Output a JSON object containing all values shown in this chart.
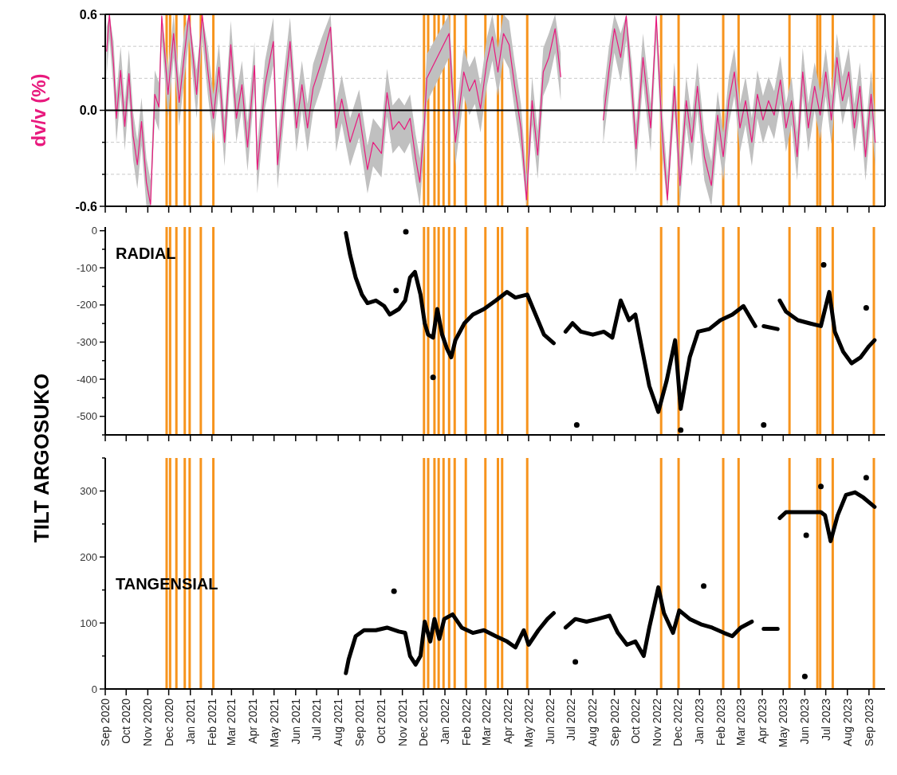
{
  "chart_data": [
    {
      "type": "line",
      "ylabel": "dv/v (%)",
      "xlim": [
        "2020-09-01",
        "2023-09-24"
      ],
      "ylim": [
        -0.6,
        0.6
      ],
      "tick_labels": "y",
      "grid": "y",
      "yticks": [
        {
          "value": -0.6,
          "label": "-0.6"
        },
        {
          "value": -0.4,
          "label": null
        },
        {
          "value": -0.2,
          "label": null
        },
        {
          "value": 0,
          "label": "0.0"
        },
        {
          "value": 0.2,
          "label": null
        },
        {
          "value": 0.4,
          "label": null
        },
        {
          "value": 0.6,
          "label": "0.6"
        }
      ],
      "xticks": [
        {
          "value": "2020-09",
          "label": null
        },
        {
          "value": "2020-10",
          "label": null
        },
        {
          "value": "2020-11",
          "label": null
        },
        {
          "value": "2020-12",
          "label": null
        },
        {
          "value": "2021-01",
          "label": null
        },
        {
          "value": "2021-02",
          "label": null
        },
        {
          "value": "2021-03",
          "label": null
        },
        {
          "value": "2021-04",
          "label": null
        },
        {
          "value": "2021-05",
          "label": null
        },
        {
          "value": "2021-06",
          "label": null
        },
        {
          "value": "2021-07",
          "label": null
        },
        {
          "value": "2021-08",
          "label": null
        },
        {
          "value": "2021-09",
          "label": null
        },
        {
          "value": "2021-10",
          "label": null
        },
        {
          "value": "2021-11",
          "label": null
        },
        {
          "value": "2021-12",
          "label": null
        },
        {
          "value": "2022-01",
          "label": null
        },
        {
          "value": "2022-02",
          "label": null
        },
        {
          "value": "2022-03",
          "label": null
        },
        {
          "value": "2022-04",
          "label": null
        },
        {
          "value": "2022-05",
          "label": null
        },
        {
          "value": "2022-06",
          "label": null
        },
        {
          "value": "2022-07",
          "label": null
        },
        {
          "value": "2022-08",
          "label": null
        },
        {
          "value": "2022-09",
          "label": null
        },
        {
          "value": "2022-10",
          "label": null
        },
        {
          "value": "2022-11",
          "label": null
        },
        {
          "value": "2022-12",
          "label": null
        },
        {
          "value": "2023-01",
          "label": null
        },
        {
          "value": "2023-02",
          "label": null
        },
        {
          "value": "2023-03",
          "label": null
        },
        {
          "value": "2023-04",
          "label": null
        },
        {
          "value": "2023-05",
          "label": null
        },
        {
          "value": "2023-06",
          "label": null
        },
        {
          "value": "2023-07",
          "label": null
        },
        {
          "value": "2023-08",
          "label": null
        },
        {
          "value": "2023-09",
          "label": null
        }
      ],
      "ref_lines": [
        {
          "axis": "y",
          "value": 0,
          "color": "#000000"
        },
        {
          "axis": "x",
          "value": "2020-11-28",
          "color": "#f7941d"
        },
        {
          "axis": "x",
          "value": "2020-12-03",
          "color": "#f7941d"
        },
        {
          "axis": "x",
          "value": "2020-12-12",
          "color": "#f7941d"
        },
        {
          "axis": "x",
          "value": "2020-12-24",
          "color": "#f7941d"
        },
        {
          "axis": "x",
          "value": "2020-12-31",
          "color": "#f7941d"
        },
        {
          "axis": "x",
          "value": "2021-01-16",
          "color": "#f7941d"
        },
        {
          "axis": "x",
          "value": "2021-02-03",
          "color": "#f7941d"
        },
        {
          "axis": "x",
          "value": "2021-12-02",
          "color": "#f7941d"
        },
        {
          "axis": "x",
          "value": "2021-12-08",
          "color": "#f7941d"
        },
        {
          "axis": "x",
          "value": "2021-12-17",
          "color": "#f7941d"
        },
        {
          "axis": "x",
          "value": "2021-12-23",
          "color": "#f7941d"
        },
        {
          "axis": "x",
          "value": "2021-12-30",
          "color": "#f7941d"
        },
        {
          "axis": "x",
          "value": "2022-01-07",
          "color": "#f7941d"
        },
        {
          "axis": "x",
          "value": "2022-01-15",
          "color": "#f7941d"
        },
        {
          "axis": "x",
          "value": "2022-01-31",
          "color": "#f7941d"
        },
        {
          "axis": "x",
          "value": "2022-02-28",
          "color": "#f7941d"
        },
        {
          "axis": "x",
          "value": "2022-03-18",
          "color": "#f7941d"
        },
        {
          "axis": "x",
          "value": "2022-03-24",
          "color": "#f7941d"
        },
        {
          "axis": "x",
          "value": "2022-04-29",
          "color": "#f7941d"
        },
        {
          "axis": "x",
          "value": "2022-11-07",
          "color": "#f7941d"
        },
        {
          "axis": "x",
          "value": "2022-12-02",
          "color": "#f7941d"
        },
        {
          "axis": "x",
          "value": "2023-02-04",
          "color": "#f7941d"
        },
        {
          "axis": "x",
          "value": "2023-02-26",
          "color": "#f7941d"
        },
        {
          "axis": "x",
          "value": "2023-05-10",
          "color": "#f7941d"
        },
        {
          "axis": "x",
          "value": "2023-06-19",
          "color": "#f7941d"
        },
        {
          "axis": "x",
          "value": "2023-06-23",
          "color": "#f7941d"
        },
        {
          "axis": "x",
          "value": "2023-07-11",
          "color": "#f7941d"
        },
        {
          "axis": "x",
          "value": "2023-09-08",
          "color": "#f7941d"
        }
      ],
      "series": [
        {
          "color": "#e8197d",
          "x": [
            "2020-09-03",
            "2020-09-07",
            "2020-09-13",
            "2020-09-17",
            "2020-09-23",
            "2020-09-29",
            "2020-10-05",
            "2020-10-11",
            "2020-10-17",
            "2020-10-23",
            "2020-10-30",
            "2020-11-05",
            "2020-11-11",
            "2020-11-17",
            "2020-11-21",
            "2020-11-30",
            "2020-12-08",
            "2020-12-16",
            "2020-12-24",
            "2020-12-30",
            "2021-01-10",
            "2021-01-18",
            "2021-01-26",
            "2021-02-03",
            "2021-02-11",
            "2021-02-19",
            "2021-02-28",
            "2021-03-08",
            "2021-03-16",
            "2021-03-24",
            "2021-04-03",
            "2021-04-07",
            "2021-04-18",
            "2021-04-30",
            "2021-05-06",
            "2021-05-16",
            "2021-05-24",
            "2021-06-02",
            "2021-06-10",
            "2021-06-18",
            "2021-06-26",
            "2021-07-08",
            "2021-07-21",
            "2021-07-29",
            "2021-08-06",
            "2021-08-18",
            "2021-08-31",
            "2021-09-12",
            "2021-09-20",
            "2021-10-02",
            "2021-10-10",
            "2021-10-18",
            "2021-10-27",
            "2021-11-04",
            "2021-11-12",
            "2021-11-20",
            "2021-11-26",
            "2021-12-03",
            "2021-12-06",
            "2022-01-07",
            "2022-01-16",
            "2022-01-28",
            "2022-02-05",
            "2022-02-13",
            "2022-02-21",
            "2022-03-02",
            "2022-03-10",
            "2022-03-18",
            "2022-03-26",
            "2022-04-03",
            "2022-04-11",
            "2022-04-20",
            "2022-04-28",
            "2022-05-06",
            "2022-05-14",
            "2022-05-22",
            "2022-05-30",
            "2022-06-08",
            "2022-06-16",
            "2022-07-15",
            "2022-08-16",
            "2022-08-24",
            "2022-09-01",
            "2022-09-10",
            "2022-09-18",
            "2022-09-26",
            "2022-10-02",
            "2022-10-12",
            "2022-10-23",
            "2022-10-31",
            "2022-11-08",
            "2022-11-16",
            "2022-11-26",
            "2022-12-04",
            "2022-12-13",
            "2022-12-21",
            "2022-12-29",
            "2023-01-08",
            "2023-01-18",
            "2023-01-27",
            "2023-02-04",
            "2023-02-12",
            "2023-02-20",
            "2023-02-28",
            "2023-03-08",
            "2023-03-17",
            "2023-03-25",
            "2023-04-02",
            "2023-04-10",
            "2023-04-18",
            "2023-04-27",
            "2023-05-05",
            "2023-05-13",
            "2023-05-21",
            "2023-05-29",
            "2023-06-06",
            "2023-06-15",
            "2023-06-23",
            "2023-07-01",
            "2023-07-09",
            "2023-07-17",
            "2023-07-25",
            "2023-08-03",
            "2023-08-11",
            "2023-08-19",
            "2023-08-27",
            "2023-09-04",
            "2023-09-10"
          ],
          "values": [
            0.37,
            0.6,
            0.28,
            -0.05,
            0.25,
            -0.1,
            0.23,
            -0.16,
            -0.34,
            -0.07,
            -0.45,
            -0.59,
            0.1,
            0.02,
            0.59,
            0.1,
            0.48,
            0.05,
            0.37,
            0.6,
            0.1,
            0.6,
            0.25,
            -0.05,
            0.27,
            -0.2,
            0.41,
            -0.05,
            0.16,
            -0.23,
            0.28,
            -0.37,
            0.16,
            0.43,
            -0.34,
            0.12,
            0.43,
            -0.11,
            0.16,
            -0.11,
            0.14,
            0.3,
            0.52,
            -0.11,
            0.07,
            -0.2,
            -0.02,
            -0.37,
            -0.2,
            -0.27,
            0.11,
            -0.12,
            -0.07,
            -0.12,
            -0.05,
            -0.3,
            -0.45,
            -0.05,
            0.2,
            0.48,
            -0.2,
            0.24,
            0.12,
            0.19,
            0.01,
            0.3,
            0.46,
            0.24,
            0.48,
            0.41,
            0.15,
            -0.11,
            -0.56,
            0.06,
            -0.28,
            0.24,
            0.33,
            0.51,
            0.21,
            null,
            -0.06,
            0.24,
            0.51,
            0.33,
            0.59,
            0.15,
            -0.24,
            0.33,
            -0.11,
            0.59,
            -0.11,
            -0.56,
            0.15,
            -0.47,
            0.06,
            -0.2,
            0.15,
            -0.29,
            -0.47,
            -0.03,
            -0.29,
            0.06,
            0.24,
            -0.11,
            0.06,
            -0.2,
            0.1,
            -0.06,
            0.06,
            -0.03,
            0.19,
            -0.11,
            0.06,
            -0.29,
            0.24,
            -0.11,
            0.15,
            -0.03,
            0.24,
            -0.06,
            0.33,
            0.06,
            0.24,
            -0.11,
            0.15,
            -0.29,
            0.1,
            -0.2
          ],
          "lower": [
            0.22,
            0.45,
            0.13,
            -0.2,
            0.1,
            -0.25,
            0.08,
            -0.31,
            -0.49,
            -0.22,
            -0.6,
            -0.6,
            -0.05,
            -0.13,
            0.44,
            -0.05,
            0.33,
            -0.1,
            0.22,
            0.45,
            -0.05,
            0.45,
            0.1,
            -0.2,
            0.12,
            -0.35,
            0.26,
            -0.2,
            0.01,
            -0.38,
            0.13,
            -0.52,
            0.01,
            0.28,
            -0.49,
            -0.03,
            0.28,
            -0.26,
            0.01,
            -0.26,
            -0.01,
            0.15,
            0.37,
            -0.26,
            -0.08,
            -0.35,
            -0.17,
            -0.52,
            -0.35,
            -0.42,
            -0.04,
            -0.27,
            -0.22,
            -0.27,
            -0.2,
            -0.45,
            -0.6,
            -0.2,
            0.05,
            0.33,
            -0.35,
            0.09,
            -0.03,
            0.04,
            -0.14,
            0.15,
            0.31,
            0.09,
            0.33,
            0.26,
            0,
            -0.26,
            -0.6,
            -0.09,
            -0.43,
            0.09,
            0.18,
            0.36,
            0.06,
            null,
            -0.21,
            0.09,
            0.36,
            0.18,
            0.44,
            0,
            -0.39,
            0.18,
            -0.26,
            0.44,
            -0.26,
            -0.6,
            0,
            -0.6,
            -0.09,
            -0.35,
            0,
            -0.44,
            -0.6,
            -0.18,
            -0.44,
            -0.09,
            0.09,
            -0.26,
            -0.09,
            -0.35,
            -0.05,
            -0.21,
            -0.09,
            -0.18,
            0.04,
            -0.26,
            -0.09,
            -0.44,
            0.09,
            -0.26,
            0,
            -0.18,
            0.09,
            -0.21,
            0.18,
            -0.09,
            0.09,
            -0.26,
            0,
            -0.44,
            -0.05,
            -0.35
          ],
          "upper": [
            0.52,
            0.6,
            0.43,
            0.1,
            0.4,
            0.05,
            0.38,
            -0.01,
            -0.19,
            0.08,
            -0.3,
            -0.44,
            0.25,
            0.17,
            0.6,
            0.25,
            0.6,
            0.2,
            0.52,
            0.6,
            0.25,
            0.6,
            0.4,
            0.1,
            0.42,
            -0.05,
            0.56,
            0.1,
            0.31,
            -0.08,
            0.43,
            -0.22,
            0.31,
            0.58,
            -0.19,
            0.27,
            0.58,
            0.04,
            0.31,
            0.04,
            0.29,
            0.45,
            0.6,
            0.04,
            0.22,
            -0.05,
            0.13,
            -0.22,
            -0.05,
            -0.12,
            0.26,
            0.03,
            0.08,
            0.03,
            0.1,
            -0.15,
            -0.3,
            0.1,
            0.35,
            0.6,
            -0.05,
            0.39,
            0.27,
            0.34,
            0.16,
            0.45,
            0.6,
            0.39,
            0.6,
            0.56,
            0.3,
            0.04,
            -0.41,
            0.21,
            -0.13,
            0.39,
            0.48,
            0.6,
            0.36,
            null,
            0.09,
            0.39,
            0.6,
            0.48,
            0.6,
            0.3,
            -0.09,
            0.48,
            0.04,
            0.6,
            0.04,
            -0.41,
            0.3,
            -0.32,
            0.21,
            -0.05,
            0.3,
            -0.14,
            -0.32,
            0.12,
            -0.14,
            0.21,
            0.39,
            0.04,
            0.21,
            -0.05,
            0.25,
            0.09,
            0.21,
            0.12,
            0.34,
            0.04,
            0.21,
            -0.14,
            0.39,
            0.04,
            0.3,
            0.12,
            0.39,
            0.09,
            0.48,
            0.21,
            0.39,
            0.04,
            0.3,
            -0.14,
            0.25,
            -0.05
          ]
        }
      ]
    },
    {
      "type": "line",
      "title": "RADIAL",
      "ylabel": "TILT ARGOSUKO",
      "xlim": [
        "2020-09-01",
        "2023-09-24"
      ],
      "ylim": [
        -550,
        10
      ],
      "tick_labels": "y",
      "yticks": [
        {
          "value": -550,
          "label": null
        },
        -500,
        {
          "value": -450,
          "label": null
        },
        -400,
        {
          "value": -350,
          "label": null
        },
        -300,
        {
          "value": -250,
          "label": null
        },
        -200,
        {
          "value": -150,
          "label": null
        },
        -100,
        {
          "value": -50,
          "label": null
        },
        0
      ],
      "xticks": [
        {
          "value": "2020-09",
          "label": null
        },
        {
          "value": "2020-10",
          "label": null
        },
        {
          "value": "2020-11",
          "label": null
        },
        {
          "value": "2020-12",
          "label": null
        },
        {
          "value": "2021-01",
          "label": null
        },
        {
          "value": "2021-02",
          "label": null
        },
        {
          "value": "2021-03",
          "label": null
        },
        {
          "value": "2021-04",
          "label": null
        },
        {
          "value": "2021-05",
          "label": null
        },
        {
          "value": "2021-06",
          "label": null
        },
        {
          "value": "2021-07",
          "label": null
        },
        {
          "value": "2021-08",
          "label": null
        },
        {
          "value": "2021-09",
          "label": null
        },
        {
          "value": "2021-10",
          "label": null
        },
        {
          "value": "2021-11",
          "label": null
        },
        {
          "value": "2021-12",
          "label": null
        },
        {
          "value": "2022-01",
          "label": null
        },
        {
          "value": "2022-02",
          "label": null
        },
        {
          "value": "2022-03",
          "label": null
        },
        {
          "value": "2022-04",
          "label": null
        },
        {
          "value": "2022-05",
          "label": null
        },
        {
          "value": "2022-06",
          "label": null
        },
        {
          "value": "2022-07",
          "label": null
        },
        {
          "value": "2022-08",
          "label": null
        },
        {
          "value": "2022-09",
          "label": null
        },
        {
          "value": "2022-10",
          "label": null
        },
        {
          "value": "2022-11",
          "label": null
        },
        {
          "value": "2022-12",
          "label": null
        },
        {
          "value": "2023-01",
          "label": null
        },
        {
          "value": "2023-02",
          "label": null
        },
        {
          "value": "2023-03",
          "label": null
        },
        {
          "value": "2023-04",
          "label": null
        },
        {
          "value": "2023-05",
          "label": null
        },
        {
          "value": "2023-06",
          "label": null
        },
        {
          "value": "2023-07",
          "label": null
        },
        {
          "value": "2023-08",
          "label": null
        },
        {
          "value": "2023-09",
          "label": null
        }
      ],
      "ref_lines": [
        {
          "axis": "x",
          "value": "2020-11-28",
          "color": "#f7941d"
        },
        {
          "axis": "x",
          "value": "2020-12-03",
          "color": "#f7941d"
        },
        {
          "axis": "x",
          "value": "2020-12-12",
          "color": "#f7941d"
        },
        {
          "axis": "x",
          "value": "2020-12-24",
          "color": "#f7941d"
        },
        {
          "axis": "x",
          "value": "2020-12-31",
          "color": "#f7941d"
        },
        {
          "axis": "x",
          "value": "2021-01-16",
          "color": "#f7941d"
        },
        {
          "axis": "x",
          "value": "2021-02-03",
          "color": "#f7941d"
        },
        {
          "axis": "x",
          "value": "2021-12-02",
          "color": "#f7941d"
        },
        {
          "axis": "x",
          "value": "2021-12-08",
          "color": "#f7941d"
        },
        {
          "axis": "x",
          "value": "2021-12-17",
          "color": "#f7941d"
        },
        {
          "axis": "x",
          "value": "2021-12-23",
          "color": "#f7941d"
        },
        {
          "axis": "x",
          "value": "2021-12-30",
          "color": "#f7941d"
        },
        {
          "axis": "x",
          "value": "2022-01-07",
          "color": "#f7941d"
        },
        {
          "axis": "x",
          "value": "2022-01-15",
          "color": "#f7941d"
        },
        {
          "axis": "x",
          "value": "2022-01-31",
          "color": "#f7941d"
        },
        {
          "axis": "x",
          "value": "2022-02-28",
          "color": "#f7941d"
        },
        {
          "axis": "x",
          "value": "2022-03-18",
          "color": "#f7941d"
        },
        {
          "axis": "x",
          "value": "2022-03-24",
          "color": "#f7941d"
        },
        {
          "axis": "x",
          "value": "2022-04-29",
          "color": "#f7941d"
        },
        {
          "axis": "x",
          "value": "2022-11-07",
          "color": "#f7941d"
        },
        {
          "axis": "x",
          "value": "2022-12-02",
          "color": "#f7941d"
        },
        {
          "axis": "x",
          "value": "2023-02-04",
          "color": "#f7941d"
        },
        {
          "axis": "x",
          "value": "2023-02-26",
          "color": "#f7941d"
        },
        {
          "axis": "x",
          "value": "2023-05-10",
          "color": "#f7941d"
        },
        {
          "axis": "x",
          "value": "2023-06-19",
          "color": "#f7941d"
        },
        {
          "axis": "x",
          "value": "2023-06-23",
          "color": "#f7941d"
        },
        {
          "axis": "x",
          "value": "2023-07-11",
          "color": "#f7941d"
        },
        {
          "axis": "x",
          "value": "2023-09-08",
          "color": "#f7941d"
        }
      ],
      "series": [
        {
          "color": "#000000",
          "x": [
            "2021-08-12",
            "2021-08-18",
            "2021-08-26",
            "2021-09-04",
            "2021-09-12",
            "2021-09-24",
            "2021-10-06",
            "2021-10-14",
            "2021-10-27",
            "2021-11-05",
            "2021-11-12",
            "2021-11-19",
            "2021-11-27",
            "2021-12-03",
            "2021-12-08",
            "2021-12-15",
            "2021-12-21",
            "2021-12-28",
            "2022-01-04",
            "2022-01-10",
            "2022-01-16",
            "2022-01-29",
            "2022-02-10",
            "2022-02-26",
            "2022-03-15",
            "2022-03-31",
            "2022-04-12",
            "2022-04-29",
            "2022-05-11",
            "2022-05-23",
            "2022-06-06",
            "2022-06-15",
            "2022-06-23",
            "2022-07-03",
            "2022-07-15",
            "2022-08-01",
            "2022-08-17",
            "2022-08-29",
            "2022-09-10",
            "2022-09-22",
            "2022-10-01",
            "2022-10-09",
            "2022-10-21",
            "2022-11-03",
            "2022-11-15",
            "2022-11-27",
            "2022-12-05",
            "2022-12-18",
            "2022-12-30",
            "2023-01-15",
            "2023-01-31",
            "2023-02-17",
            "2023-03-05",
            "2023-03-22",
            "2023-03-28",
            "2023-04-03",
            "2023-04-23",
            "2023-04-24",
            "2023-04-26",
            "2023-05-05",
            "2023-05-22",
            "2023-06-07",
            "2023-06-24",
            "2023-07-06",
            "2023-07-14",
            "2023-07-26",
            "2023-08-07",
            "2023-08-20",
            "2023-09-01",
            "2023-09-09"
          ],
          "values": [
            -6,
            -65,
            -126,
            -172,
            -195,
            -188,
            -203,
            -226,
            -211,
            -188,
            -126,
            -111,
            -172,
            -249,
            -280,
            -288,
            -211,
            -280,
            -318,
            -341,
            -295,
            -249,
            -226,
            -211,
            -188,
            -165,
            -180,
            -172,
            -226,
            -280,
            -303,
            null,
            -272,
            -249,
            -272,
            -280,
            -272,
            -288,
            -188,
            -241,
            -226,
            -303,
            -418,
            -488,
            -403,
            -295,
            -480,
            -341,
            -272,
            -265,
            -241,
            -226,
            -203,
            -257,
            null,
            -257,
            -265,
            null,
            -188,
            -218,
            -241,
            -249,
            -257,
            -165,
            -272,
            -326,
            -357,
            -341,
            -311,
            -295
          ]
        },
        {
          "type": "scatter",
          "marker": "circle",
          "color": "#000000",
          "x": [
            "2021-10-23",
            "2021-11-06",
            "2021-12-15",
            "2022-07-09",
            "2022-12-05",
            "2023-04-03",
            "2023-06-28",
            "2023-08-28"
          ],
          "values": [
            -161,
            -3,
            -395,
            -523,
            -537,
            -523,
            -92,
            -208
          ]
        }
      ]
    },
    {
      "type": "line",
      "title": "TANGENSIAL",
      "xlim": [
        "2020-09-01",
        "2023-09-24"
      ],
      "ylim": [
        0,
        350
      ],
      "yticks": [
        0,
        {
          "value": 50,
          "label": null
        },
        100,
        {
          "value": 150,
          "label": null
        },
        200,
        {
          "value": 250,
          "label": null
        },
        300,
        {
          "value": 350,
          "label": null
        }
      ],
      "xticks": [
        {
          "value": "2020-09",
          "label": "Sep 2020"
        },
        {
          "value": "2020-10",
          "label": "Oct 2020"
        },
        {
          "value": "2020-11",
          "label": "Nov 2020"
        },
        {
          "value": "2020-12",
          "label": "Dec 2020"
        },
        {
          "value": "2021-01",
          "label": "Jan 2021"
        },
        {
          "value": "2021-02",
          "label": "Feb 2021"
        },
        {
          "value": "2021-03",
          "label": "Mar 2021"
        },
        {
          "value": "2021-04",
          "label": "Apr 2021"
        },
        {
          "value": "2021-05",
          "label": "May 2021"
        },
        {
          "value": "2021-06",
          "label": "Jun 2021"
        },
        {
          "value": "2021-07",
          "label": "Jul 2021"
        },
        {
          "value": "2021-08",
          "label": "Aug 2021"
        },
        {
          "value": "2021-09",
          "label": "Sep 2021"
        },
        {
          "value": "2021-10",
          "label": "Oct 2021"
        },
        {
          "value": "2021-11",
          "label": "Nov 2021"
        },
        {
          "value": "2021-12",
          "label": "Dec 2021"
        },
        {
          "value": "2022-01",
          "label": "Jan 2022"
        },
        {
          "value": "2022-02",
          "label": "Feb 2022"
        },
        {
          "value": "2022-03",
          "label": "Mar 2022"
        },
        {
          "value": "2022-04",
          "label": "Apr 2022"
        },
        {
          "value": "2022-05",
          "label": "May 2022"
        },
        {
          "value": "2022-06",
          "label": "Jun 2022"
        },
        {
          "value": "2022-07",
          "label": "Jul 2022"
        },
        {
          "value": "2022-08",
          "label": "Aug 2022"
        },
        {
          "value": "2022-09",
          "label": "Sep 2022"
        },
        {
          "value": "2022-10",
          "label": "Oct 2022"
        },
        {
          "value": "2022-11",
          "label": "Nov 2022"
        },
        {
          "value": "2022-12",
          "label": "Dec 2022"
        },
        {
          "value": "2023-01",
          "label": "Jan 2023"
        },
        {
          "value": "2023-02",
          "label": "Feb 2023"
        },
        {
          "value": "2023-03",
          "label": "Mar 2023"
        },
        {
          "value": "2023-04",
          "label": "Apr 2023"
        },
        {
          "value": "2023-05",
          "label": "May 2023"
        },
        {
          "value": "2023-06",
          "label": "Jun 2023"
        },
        {
          "value": "2023-07",
          "label": "Jul 2023"
        },
        {
          "value": "2023-08",
          "label": "Aug 2023"
        },
        {
          "value": "2023-09",
          "label": "Sep 2023"
        }
      ],
      "ref_lines": [
        {
          "axis": "x",
          "value": "2020-11-28",
          "color": "#f7941d"
        },
        {
          "axis": "x",
          "value": "2020-12-03",
          "color": "#f7941d"
        },
        {
          "axis": "x",
          "value": "2020-12-12",
          "color": "#f7941d"
        },
        {
          "axis": "x",
          "value": "2020-12-24",
          "color": "#f7941d"
        },
        {
          "axis": "x",
          "value": "2020-12-31",
          "color": "#f7941d"
        },
        {
          "axis": "x",
          "value": "2021-01-16",
          "color": "#f7941d"
        },
        {
          "axis": "x",
          "value": "2021-02-03",
          "color": "#f7941d"
        },
        {
          "axis": "x",
          "value": "2021-12-02",
          "color": "#f7941d"
        },
        {
          "axis": "x",
          "value": "2021-12-08",
          "color": "#f7941d"
        },
        {
          "axis": "x",
          "value": "2021-12-17",
          "color": "#f7941d"
        },
        {
          "axis": "x",
          "value": "2021-12-23",
          "color": "#f7941d"
        },
        {
          "axis": "x",
          "value": "2021-12-30",
          "color": "#f7941d"
        },
        {
          "axis": "x",
          "value": "2022-01-07",
          "color": "#f7941d"
        },
        {
          "axis": "x",
          "value": "2022-01-15",
          "color": "#f7941d"
        },
        {
          "axis": "x",
          "value": "2022-01-31",
          "color": "#f7941d"
        },
        {
          "axis": "x",
          "value": "2022-02-28",
          "color": "#f7941d"
        },
        {
          "axis": "x",
          "value": "2022-03-18",
          "color": "#f7941d"
        },
        {
          "axis": "x",
          "value": "2022-03-24",
          "color": "#f7941d"
        },
        {
          "axis": "x",
          "value": "2022-04-29",
          "color": "#f7941d"
        },
        {
          "axis": "x",
          "value": "2022-11-07",
          "color": "#f7941d"
        },
        {
          "axis": "x",
          "value": "2022-12-02",
          "color": "#f7941d"
        },
        {
          "axis": "x",
          "value": "2023-02-04",
          "color": "#f7941d"
        },
        {
          "axis": "x",
          "value": "2023-02-26",
          "color": "#f7941d"
        },
        {
          "axis": "x",
          "value": "2023-05-10",
          "color": "#f7941d"
        },
        {
          "axis": "x",
          "value": "2023-06-19",
          "color": "#f7941d"
        },
        {
          "axis": "x",
          "value": "2023-06-23",
          "color": "#f7941d"
        },
        {
          "axis": "x",
          "value": "2023-07-11",
          "color": "#f7941d"
        },
        {
          "axis": "x",
          "value": "2023-09-08",
          "color": "#f7941d"
        }
      ],
      "series": [
        {
          "color": "#000000",
          "x": [
            "2021-08-12",
            "2021-08-16",
            "2021-08-26",
            "2021-09-07",
            "2021-09-24",
            "2021-10-10",
            "2021-10-27",
            "2021-11-05",
            "2021-11-12",
            "2021-11-20",
            "2021-11-27",
            "2021-12-03",
            "2021-12-11",
            "2021-12-17",
            "2021-12-24",
            "2021-12-31",
            "2022-01-12",
            "2022-01-25",
            "2022-02-10",
            "2022-02-26",
            "2022-03-15",
            "2022-03-31",
            "2022-04-12",
            "2022-04-24",
            "2022-05-01",
            "2022-05-15",
            "2022-05-28",
            "2022-06-06",
            "2022-06-15",
            "2022-06-23",
            "2022-07-07",
            "2022-07-23",
            "2022-08-08",
            "2022-08-25",
            "2022-09-06",
            "2022-09-19",
            "2022-10-01",
            "2022-10-13",
            "2022-10-21",
            "2022-11-03",
            "2022-11-11",
            "2022-11-24",
            "2022-12-03",
            "2022-12-18",
            "2023-01-03",
            "2023-01-19",
            "2023-02-05",
            "2023-02-17",
            "2023-03-01",
            "2023-03-17",
            "2023-03-28",
            "2023-04-03",
            "2023-04-23",
            "2023-04-25",
            "2023-04-26",
            "2023-05-05",
            "2023-05-22",
            "2023-06-07",
            "2023-06-24",
            "2023-06-30",
            "2023-07-08",
            "2023-07-18",
            "2023-07-30",
            "2023-08-12",
            "2023-08-24",
            "2023-09-09"
          ],
          "values": [
            24,
            45,
            80,
            89,
            89,
            93,
            87,
            85,
            50,
            37,
            50,
            102,
            72,
            106,
            76,
            106,
            113,
            93,
            85,
            89,
            80,
            72,
            63,
            89,
            67,
            89,
            106,
            115,
            null,
            93,
            106,
            102,
            106,
            111,
            85,
            67,
            72,
            50,
            93,
            154,
            115,
            85,
            119,
            106,
            98,
            93,
            85,
            80,
            93,
            102,
            null,
            91,
            91,
            null,
            259,
            268,
            268,
            268,
            268,
            263,
            224,
            263,
            294,
            298,
            290,
            276
          ]
        },
        {
          "type": "scatter",
          "marker": "circle",
          "color": "#000000",
          "x": [
            "2021-10-20",
            "2022-07-07",
            "2023-01-07",
            "2023-06-01",
            "2023-06-03",
            "2023-06-24",
            "2023-08-28"
          ],
          "values": [
            148,
            41,
            156,
            19,
            233,
            307,
            320
          ]
        }
      ]
    }
  ]
}
